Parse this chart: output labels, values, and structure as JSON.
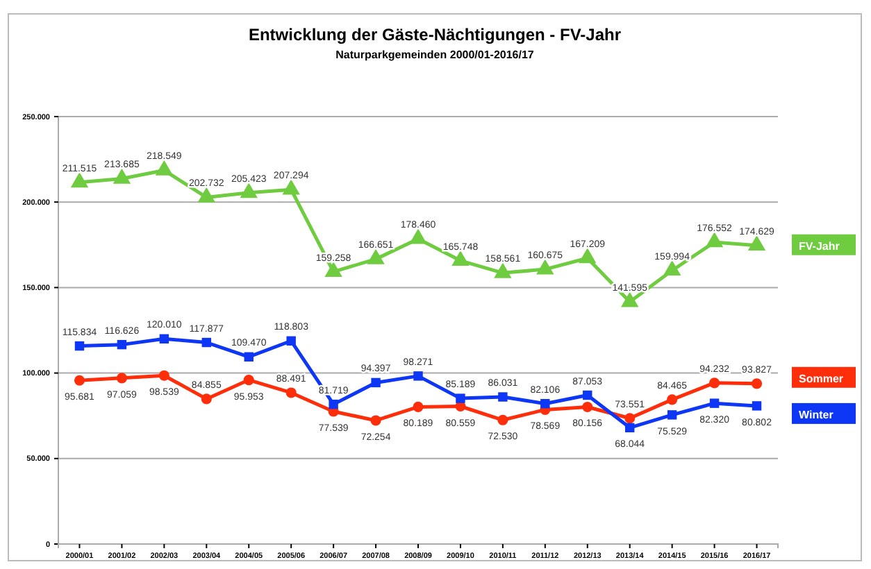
{
  "chart_data": {
    "type": "line",
    "title": "Entwicklung der Gäste-Nächtigungen - FV-Jahr",
    "subtitle": "Naturparkgemeinden 2000/01-2016/17",
    "categories": [
      "2000/01",
      "2001/02",
      "2002/03",
      "2003/04",
      "2004/05",
      "2005/06",
      "2006/07",
      "2007/08",
      "2008/09",
      "2009/10",
      "2010/11",
      "2011/12",
      "2012/13",
      "2013/14",
      "2014/15",
      "2015/16",
      "2016/17"
    ],
    "ylim": [
      0,
      250000
    ],
    "yticks": [
      {
        "value": 0,
        "label": "0"
      },
      {
        "value": 50000,
        "label": "50.000"
      },
      {
        "value": 100000,
        "label": "100.000"
      },
      {
        "value": 150000,
        "label": "150.000"
      },
      {
        "value": 200000,
        "label": "200.000"
      },
      {
        "value": 250000,
        "label": "250.000"
      }
    ],
    "grid": "y",
    "legend": "right",
    "series": [
      {
        "name": "FV-Jahr",
        "color": "#6fcb3f",
        "marker": "triangle",
        "values": [
          211515,
          213685,
          218549,
          202732,
          205423,
          207294,
          159258,
          166651,
          178460,
          165748,
          158561,
          160675,
          167209,
          141595,
          159994,
          176552,
          174629
        ],
        "value_labels": [
          "211.515",
          "213.685",
          "218.549",
          "202.732",
          "205.423",
          "207.294",
          "159.258",
          "166.651",
          "178.460",
          "165.748",
          "158.561",
          "160.675",
          "167.209",
          "141.595",
          "159.994",
          "176.552",
          "174.629"
        ]
      },
      {
        "name": "Sommer",
        "color": "#fe2d0a",
        "marker": "circle",
        "values": [
          95681,
          97059,
          98539,
          84855,
          95953,
          88491,
          77539,
          72254,
          80189,
          80559,
          72530,
          78569,
          80156,
          73551,
          84465,
          94232,
          93827
        ],
        "value_labels": [
          "95.681",
          "97.059",
          "98.539",
          "84.855",
          "95.953",
          "88.491",
          "77.539",
          "72.254",
          "80.189",
          "80.559",
          "72.530",
          "78.569",
          "80.156",
          "73.551",
          "84.465",
          "94.232",
          "93.827"
        ]
      },
      {
        "name": "Winter",
        "color": "#0d36f5",
        "marker": "square",
        "values": [
          115834,
          116626,
          120010,
          117877,
          109470,
          118803,
          81719,
          94397,
          98271,
          85189,
          86031,
          82106,
          87053,
          68044,
          75529,
          82320,
          80802
        ],
        "value_labels": [
          "115.834",
          "116.626",
          "120.010",
          "117.877",
          "109.470",
          "118.803",
          "81.719",
          "94.397",
          "98.271",
          "85.189",
          "86.031",
          "82.106",
          "87.053",
          "68.044",
          "75.529",
          "82.320",
          "80.802"
        ]
      }
    ]
  }
}
